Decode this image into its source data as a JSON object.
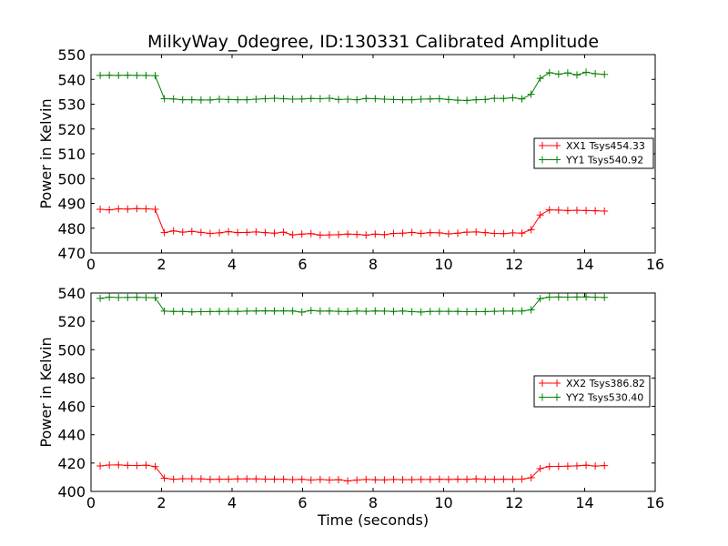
{
  "chart_data": [
    {
      "type": "line",
      "title": "MilkyWay_0degree, ID:130331 Calibrated Amplitude",
      "xlabel": "",
      "ylabel": "Power in Kelvin",
      "xlim": [
        0,
        16
      ],
      "ylim": [
        470,
        550
      ],
      "xticks": [
        0,
        2,
        4,
        6,
        8,
        10,
        12,
        14,
        16
      ],
      "yticks": [
        470,
        480,
        490,
        500,
        510,
        520,
        530,
        540,
        550
      ],
      "grid": false,
      "legend_position": "center-right",
      "x": [
        0.26,
        0.52,
        0.78,
        1.04,
        1.3,
        1.56,
        1.82,
        2.08,
        2.34,
        2.6,
        2.86,
        3.12,
        3.38,
        3.64,
        3.9,
        4.16,
        4.42,
        4.68,
        4.94,
        5.2,
        5.46,
        5.72,
        5.98,
        6.24,
        6.5,
        6.76,
        7.02,
        7.28,
        7.54,
        7.8,
        8.06,
        8.32,
        8.58,
        8.84,
        9.1,
        9.36,
        9.62,
        9.88,
        10.14,
        10.4,
        10.66,
        10.92,
        11.18,
        11.44,
        11.7,
        11.96,
        12.22,
        12.48,
        12.74,
        13.0,
        13.26,
        13.52,
        13.78,
        14.04,
        14.3,
        14.56
      ],
      "series": [
        {
          "name": "XX1 Tsys454.33",
          "color": "#ff0000",
          "values": [
            487.6,
            487.4,
            487.8,
            487.7,
            487.9,
            487.8,
            487.6,
            478.2,
            478.9,
            478.4,
            478.7,
            478.3,
            477.9,
            478.1,
            478.6,
            478.2,
            478.3,
            478.5,
            478.2,
            478.0,
            478.4,
            477.3,
            477.6,
            477.8,
            477.2,
            477.3,
            477.4,
            477.6,
            477.5,
            477.2,
            477.6,
            477.4,
            477.9,
            478.0,
            478.3,
            477.9,
            478.2,
            478.1,
            477.7,
            478.0,
            478.4,
            478.5,
            478.2,
            477.9,
            477.8,
            478.1,
            478.0,
            479.4,
            485.3,
            487.4,
            487.3,
            487.1,
            487.2,
            487.1,
            487.0,
            486.9
          ]
        },
        {
          "name": "YY1 Tsys540.92",
          "color": "#008000",
          "values": [
            541.6,
            541.7,
            541.6,
            541.7,
            541.6,
            541.6,
            541.5,
            532.2,
            532.1,
            531.8,
            531.8,
            531.7,
            531.7,
            532.0,
            531.9,
            531.8,
            531.8,
            532.0,
            532.2,
            532.4,
            532.2,
            532.0,
            532.1,
            532.3,
            532.2,
            532.4,
            531.9,
            532.0,
            531.8,
            532.3,
            532.2,
            532.0,
            531.9,
            531.8,
            531.8,
            532.0,
            532.1,
            532.2,
            531.9,
            531.6,
            531.5,
            531.8,
            531.9,
            532.4,
            532.3,
            532.6,
            532.1,
            534.0,
            540.4,
            542.7,
            542.1,
            542.6,
            541.8,
            542.9,
            542.3,
            542.0
          ]
        }
      ]
    },
    {
      "type": "line",
      "title": "",
      "xlabel": "Time (seconds)",
      "ylabel": "Power in Kelvin",
      "xlim": [
        0,
        16
      ],
      "ylim": [
        400,
        540
      ],
      "xticks": [
        0,
        2,
        4,
        6,
        8,
        10,
        12,
        14,
        16
      ],
      "yticks": [
        400,
        420,
        440,
        460,
        480,
        500,
        520,
        540
      ],
      "grid": false,
      "legend_position": "center-right",
      "x": [
        0.26,
        0.52,
        0.78,
        1.04,
        1.3,
        1.56,
        1.82,
        2.08,
        2.34,
        2.6,
        2.86,
        3.12,
        3.38,
        3.64,
        3.9,
        4.16,
        4.42,
        4.68,
        4.94,
        5.2,
        5.46,
        5.72,
        5.98,
        6.24,
        6.5,
        6.76,
        7.02,
        7.28,
        7.54,
        7.8,
        8.06,
        8.32,
        8.58,
        8.84,
        9.1,
        9.36,
        9.62,
        9.88,
        10.14,
        10.4,
        10.66,
        10.92,
        11.18,
        11.44,
        11.7,
        11.96,
        12.22,
        12.48,
        12.74,
        13.0,
        13.26,
        13.52,
        13.78,
        14.04,
        14.3,
        14.56
      ],
      "series": [
        {
          "name": "XX2 Tsys386.82",
          "color": "#ff0000",
          "values": [
            418.0,
            418.6,
            418.7,
            418.4,
            418.3,
            418.5,
            417.5,
            409.3,
            408.6,
            408.9,
            408.9,
            408.8,
            408.5,
            408.6,
            408.6,
            408.8,
            408.8,
            408.8,
            408.7,
            408.6,
            408.6,
            408.3,
            408.5,
            408.0,
            408.4,
            408.0,
            408.3,
            407.4,
            408.0,
            408.4,
            408.2,
            408.1,
            408.4,
            408.3,
            408.3,
            408.4,
            408.4,
            408.6,
            408.4,
            408.6,
            408.5,
            408.8,
            408.6,
            408.5,
            408.6,
            408.5,
            408.7,
            409.6,
            416.1,
            417.6,
            417.7,
            417.8,
            418.1,
            418.5,
            417.9,
            418.2
          ]
        },
        {
          "name": "YY2 Tsys530.40",
          "color": "#008000",
          "values": [
            536.2,
            537.1,
            536.8,
            536.9,
            537.0,
            536.8,
            536.7,
            527.2,
            527.0,
            527.0,
            526.7,
            526.8,
            526.9,
            527.0,
            527.1,
            527.0,
            527.2,
            527.3,
            527.4,
            527.3,
            527.4,
            527.3,
            526.5,
            527.6,
            527.2,
            527.3,
            527.1,
            526.9,
            527.3,
            527.1,
            527.3,
            527.2,
            527.0,
            527.3,
            526.8,
            526.6,
            527.0,
            527.1,
            527.1,
            527.0,
            526.8,
            526.8,
            526.9,
            527.1,
            527.2,
            527.2,
            527.3,
            528.1,
            536.1,
            537.1,
            537.2,
            537.1,
            537.2,
            537.3,
            537.0,
            536.9
          ]
        }
      ]
    }
  ]
}
